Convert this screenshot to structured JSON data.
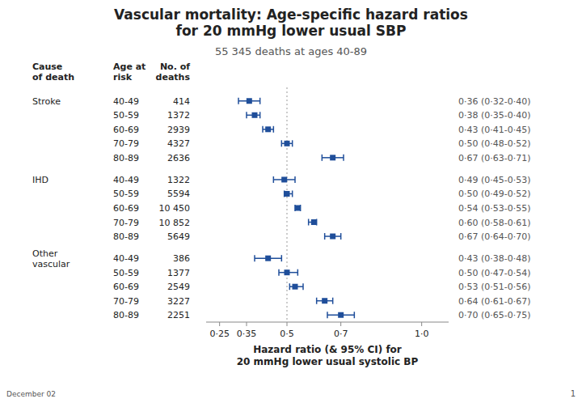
{
  "chart_data": {
    "type": "forest",
    "title": "Vascular mortality: Age-specific hazard ratios\nfor 20 mmHg lower usual SBP",
    "subtitle": "55 345 deaths at ages 40-89",
    "xlabel": "Hazard ratio (& 95% CI) for\n20 mmHg lower usual systolic BP",
    "columns": [
      "Cause\nof death",
      "Age at\nrisk",
      "No. of\ndeaths"
    ],
    "groups": [
      {
        "name": "Stroke",
        "rows": [
          {
            "age": "40-49",
            "n": "414",
            "hr": 0.36,
            "lo": 0.32,
            "hi": 0.4,
            "label": "0·36 (0·32-0·40)"
          },
          {
            "age": "50-59",
            "n": "1372",
            "hr": 0.38,
            "lo": 0.35,
            "hi": 0.4,
            "label": "0·38 (0·35-0·40)"
          },
          {
            "age": "60-69",
            "n": "2939",
            "hr": 0.43,
            "lo": 0.41,
            "hi": 0.45,
            "label": "0·43 (0·41-0·45)"
          },
          {
            "age": "70-79",
            "n": "4327",
            "hr": 0.5,
            "lo": 0.48,
            "hi": 0.52,
            "label": "0·50 (0·48-0·52)"
          },
          {
            "age": "80-89",
            "n": "2636",
            "hr": 0.67,
            "lo": 0.63,
            "hi": 0.71,
            "label": "0·67 (0·63-0·71)"
          }
        ]
      },
      {
        "name": "IHD",
        "rows": [
          {
            "age": "40-49",
            "n": "1322",
            "hr": 0.49,
            "lo": 0.45,
            "hi": 0.53,
            "label": "0·49 (0·45-0·53)"
          },
          {
            "age": "50-59",
            "n": "5594",
            "hr": 0.5,
            "lo": 0.49,
            "hi": 0.52,
            "label": "0·50 (0·49-0·52)"
          },
          {
            "age": "60-69",
            "n": "10 450",
            "hr": 0.54,
            "lo": 0.53,
            "hi": 0.55,
            "label": "0·54 (0·53-0·55)"
          },
          {
            "age": "70-79",
            "n": "10 852",
            "hr": 0.6,
            "lo": 0.58,
            "hi": 0.61,
            "label": "0·60 (0·58-0·61)"
          },
          {
            "age": "80-89",
            "n": "5649",
            "hr": 0.67,
            "lo": 0.64,
            "hi": 0.7,
            "label": "0·67 (0·64-0·70)"
          }
        ]
      },
      {
        "name": "Other\nvascular",
        "rows": [
          {
            "age": "40-49",
            "n": "386",
            "hr": 0.43,
            "lo": 0.38,
            "hi": 0.48,
            "label": "0·43 (0·38-0·48)"
          },
          {
            "age": "50-59",
            "n": "1377",
            "hr": 0.5,
            "lo": 0.47,
            "hi": 0.54,
            "label": "0·50 (0·47-0·54)"
          },
          {
            "age": "60-69",
            "n": "2549",
            "hr": 0.53,
            "lo": 0.51,
            "hi": 0.56,
            "label": "0·53 (0·51-0·56)"
          },
          {
            "age": "70-79",
            "n": "3227",
            "hr": 0.64,
            "lo": 0.61,
            "hi": 0.67,
            "label": "0·64 (0·61-0·67)"
          },
          {
            "age": "80-89",
            "n": "2251",
            "hr": 0.7,
            "lo": 0.65,
            "hi": 0.75,
            "label": "0·70 (0·65-0·75)"
          }
        ]
      }
    ],
    "xlim": [
      0.2,
      1.1
    ],
    "xticks": [
      {
        "value": 0.25,
        "label": "0·25"
      },
      {
        "value": 0.35,
        "label": "0·35"
      },
      {
        "value": 0.5,
        "label": "0·5"
      },
      {
        "value": 0.7,
        "label": "0·7"
      },
      {
        "value": 1.0,
        "label": "1·0"
      }
    ],
    "ref_line": 0.5,
    "color": "#1f4e9a",
    "footer": "December 02",
    "page_num": "1"
  }
}
